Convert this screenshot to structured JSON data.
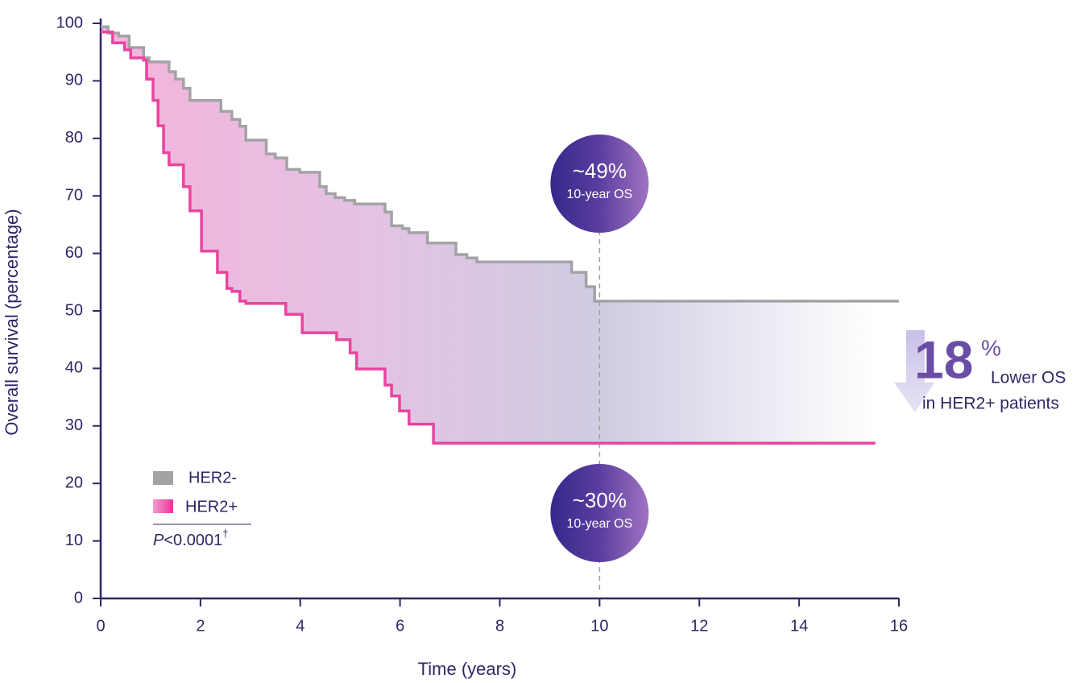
{
  "chart_data": {
    "type": "line",
    "step": "post",
    "xlabel": "Time (years)",
    "ylabel": "Overall survival (percentage)",
    "xlim": [
      0,
      16
    ],
    "ylim": [
      0,
      100
    ],
    "xticks": [
      0,
      2,
      4,
      6,
      8,
      10,
      12,
      14,
      16
    ],
    "yticks": [
      0,
      10,
      20,
      30,
      40,
      50,
      60,
      70,
      80,
      90,
      100
    ],
    "series": [
      {
        "name": "HER2-",
        "color": "#a3a3a6",
        "x": [
          0,
          0.15,
          0.36,
          0.57,
          0.86,
          0.97,
          1.37,
          1.5,
          1.66,
          1.79,
          2.41,
          2.63,
          2.79,
          2.91,
          3.32,
          3.5,
          3.73,
          3.99,
          4.39,
          4.52,
          4.7,
          4.89,
          5.09,
          5.7,
          5.83,
          6.05,
          6.18,
          6.55,
          7.12,
          7.34,
          7.54,
          9.44,
          9.73,
          9.9,
          16
        ],
        "values": [
          99.4,
          98.3,
          97.8,
          95.8,
          94.0,
          93.3,
          91.6,
          90.3,
          88.7,
          86.6,
          84.7,
          83.3,
          82.1,
          79.7,
          77.3,
          76.6,
          74.6,
          74.1,
          71.6,
          70.4,
          69.7,
          69.2,
          68.6,
          67.2,
          64.8,
          64.3,
          63.6,
          61.8,
          59.8,
          59.2,
          58.5,
          56.7,
          54.2,
          51.7,
          51.7
        ]
      },
      {
        "name": "HER2+",
        "color": "#e8459f",
        "x": [
          0,
          0.24,
          0.48,
          0.6,
          0.86,
          0.92,
          1.05,
          1.15,
          1.26,
          1.37,
          1.66,
          1.79,
          2.02,
          2.34,
          2.53,
          2.63,
          2.79,
          2.91,
          3.71,
          4.04,
          4.73,
          5.0,
          5.13,
          5.7,
          5.83,
          5.99,
          6.18,
          6.67,
          15.53
        ],
        "values": [
          98.5,
          96.6,
          95.4,
          94.0,
          93.6,
          90.3,
          86.6,
          82.2,
          77.5,
          75.4,
          71.6,
          67.4,
          60.4,
          56.7,
          53.9,
          53.4,
          51.7,
          51.3,
          49.4,
          46.2,
          45.0,
          42.7,
          39.9,
          37.1,
          35.2,
          32.6,
          30.3,
          27.0,
          27.0
        ]
      }
    ],
    "p_value": {
      "italic": "P",
      "text": "<0.0001",
      "sup": "†"
    },
    "annotations": [
      {
        "x": 10,
        "label": "~49%",
        "sublabel": "10-year OS"
      },
      {
        "x": 10,
        "label": "~30%",
        "sublabel": "10-year OS"
      }
    ],
    "difference": {
      "value": 18,
      "unit": "%",
      "line1": "Lower OS",
      "line2": "in HER2+ patients"
    }
  }
}
